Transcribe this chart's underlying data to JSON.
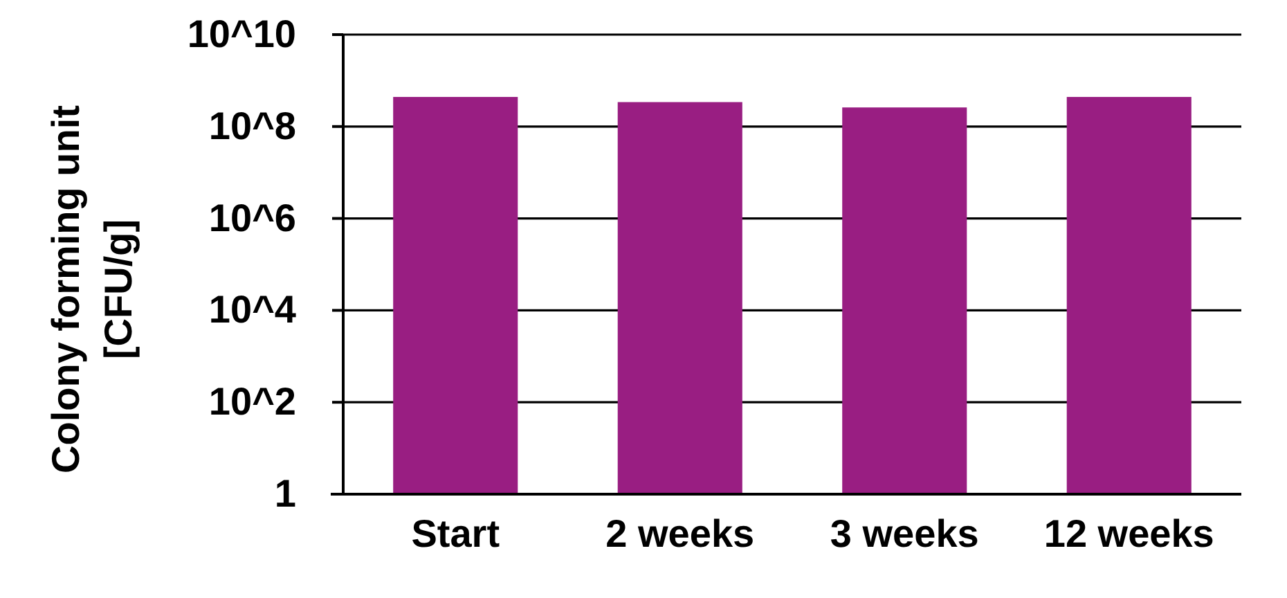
{
  "chart_data": {
    "type": "bar",
    "ylabel": "Colony forming unit\n[CFU/g]",
    "categories": [
      "Start",
      "2 weeks",
      "3 weeks",
      "12 weeks"
    ],
    "values": [
      440000000,
      340000000,
      260000000,
      440000000
    ],
    "color": "#991e82",
    "log": true,
    "ylim": [
      1,
      10000000000
    ],
    "yticks": [
      1,
      {
        "value": 100,
        "label": "10^2"
      },
      {
        "value": 10000,
        "label": "10^4"
      },
      {
        "value": 1000000,
        "label": "10^6"
      },
      {
        "value": 100000000,
        "label": "10^8"
      },
      {
        "value": 10000000000,
        "label": "10^10"
      }
    ],
    "grid": "y"
  }
}
